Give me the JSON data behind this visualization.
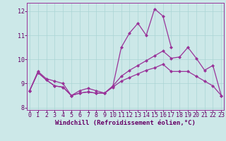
{
  "xlabel": "Windchill (Refroidissement éolien,°C)",
  "bg_color": "#cce8e8",
  "line_color": "#993399",
  "x": [
    0,
    1,
    2,
    3,
    4,
    5,
    6,
    7,
    8,
    9,
    10,
    11,
    12,
    13,
    14,
    15,
    16,
    17,
    18,
    19,
    20,
    21,
    22,
    23
  ],
  "line_main": [
    8.7,
    9.5,
    9.2,
    9.1,
    9.0,
    8.5,
    8.7,
    8.8,
    8.7,
    8.6,
    8.9,
    10.5,
    11.1,
    11.5,
    11.0,
    12.1,
    11.8,
    10.5,
    null,
    null,
    null,
    null,
    null,
    null
  ],
  "line_upper": [
    8.7,
    9.45,
    9.15,
    8.9,
    8.85,
    8.5,
    8.6,
    8.65,
    8.6,
    8.6,
    8.9,
    9.3,
    9.55,
    9.75,
    9.95,
    10.15,
    10.35,
    10.05,
    10.1,
    10.5,
    10.05,
    9.55,
    9.75,
    8.5
  ],
  "line_lower": [
    8.7,
    9.45,
    9.15,
    8.9,
    8.85,
    8.5,
    8.6,
    8.65,
    8.6,
    8.6,
    8.85,
    9.1,
    9.25,
    9.4,
    9.55,
    9.65,
    9.8,
    9.5,
    9.5,
    9.5,
    9.3,
    9.1,
    8.9,
    8.5
  ],
  "ylim": [
    7.9,
    12.35
  ],
  "yticks": [
    8,
    9,
    10,
    11,
    12
  ],
  "xticks": [
    0,
    1,
    2,
    3,
    4,
    5,
    6,
    7,
    8,
    9,
    10,
    11,
    12,
    13,
    14,
    15,
    16,
    17,
    18,
    19,
    20,
    21,
    22,
    23
  ],
  "grid_color": "#aad4d4",
  "markersize": 2.5,
  "linewidth": 0.9,
  "xlabel_fontsize": 6.5,
  "tick_fontsize": 6.0
}
